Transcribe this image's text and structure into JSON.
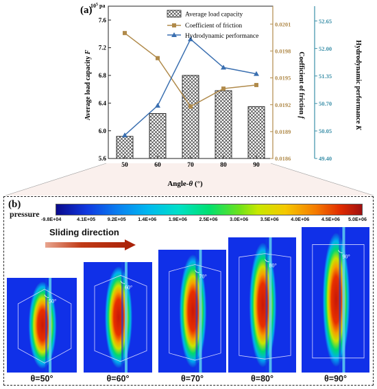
{
  "panel_a": {
    "label": "(a)",
    "unit_exponent": "10",
    "unit_sup": "5",
    "unit_word": "pa",
    "ylabel_left": "Average load capacity",
    "ylabel_left_sym": "F",
    "ylabel_right1": "Coefficient of friction",
    "ylabel_right1_sym": "f",
    "ylabel_right2": "Hydrodynamic performance",
    "ylabel_right2_sym": "K",
    "xlabel": "Angle-",
    "xlabel_sym": "θ",
    "xlabel_unit": "(°)"
  },
  "chart_data": {
    "type": "bar",
    "categories": [
      "50",
      "60",
      "70",
      "80",
      "90"
    ],
    "x_ticks": [
      "50",
      "60",
      "70",
      "80",
      "90"
    ],
    "y_left": {
      "ylim": [
        5.6,
        7.8
      ],
      "ticks": [
        "5.6",
        "6.0",
        "6.4",
        "6.8",
        "7.2",
        "7.6"
      ]
    },
    "y_right1": {
      "ylim": [
        0.0186,
        0.0203
      ],
      "ticks": [
        "0.0186",
        "0.0189",
        "0.0192",
        "0.0195",
        "0.0198",
        "0.0201"
      ],
      "color": "#b08a4a"
    },
    "y_right2": {
      "ylim": [
        49.4,
        53.0
      ],
      "ticks": [
        "49.40",
        "50.05",
        "50.70",
        "51.35",
        "52.00",
        "52.65"
      ],
      "color": "#3a8fa8"
    },
    "series": [
      {
        "name": "Average load capacity",
        "type": "bar",
        "axis": "left",
        "values": [
          5.92,
          6.25,
          6.8,
          6.58,
          6.35
        ]
      },
      {
        "name": "Coefficient of friction",
        "type": "line",
        "axis": "right1",
        "marker": "square",
        "color": "#b08a4a",
        "values": [
          0.02,
          0.01972,
          0.01918,
          0.01938,
          0.01942
        ]
      },
      {
        "name": "Hydrodynamic performance",
        "type": "line",
        "axis": "right2",
        "marker": "triangle",
        "color": "#3a6fb0",
        "values": [
          49.95,
          50.65,
          52.22,
          51.55,
          51.4
        ]
      }
    ],
    "legend": "top-right"
  },
  "panel_b": {
    "label": "(b)",
    "pressure_label": "pressure",
    "colorbar_ticks": [
      "-9.8E+04",
      "4.1E+05",
      "9.2E+05",
      "1.4E+06",
      "1.9E+06",
      "2.5E+06",
      "3.0E+06",
      "3.5E+06",
      "4.0E+06",
      "4.5E+06",
      "5.0E+06"
    ],
    "sliding_label": "Sliding direction",
    "sliding_arrow_color": "#b7290d",
    "contours": [
      {
        "caption": "θ=50°",
        "angle_label": "50°"
      },
      {
        "caption": "θ=60°",
        "angle_label": "60°"
      },
      {
        "caption": "θ=70°",
        "angle_label": "70°"
      },
      {
        "caption": "θ=80°",
        "angle_label": "80°"
      },
      {
        "caption": "θ=90°",
        "angle_label": "90°"
      }
    ]
  }
}
